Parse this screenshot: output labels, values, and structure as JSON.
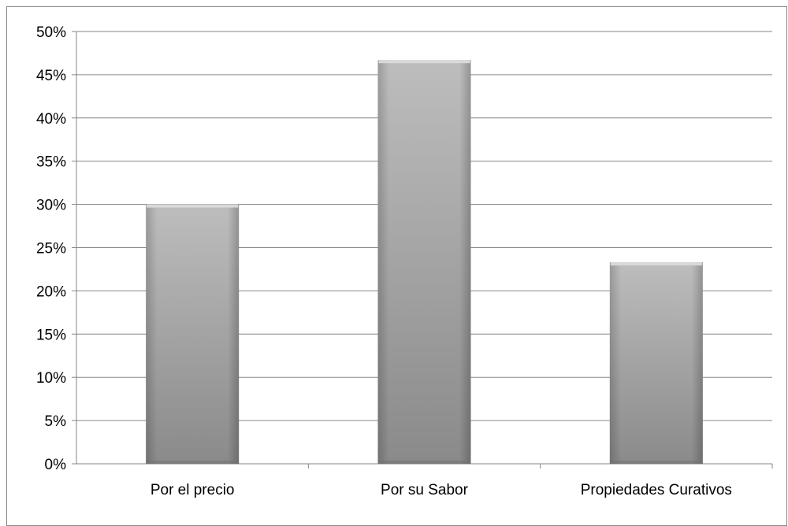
{
  "chart_data": {
    "type": "bar",
    "categories": [
      "Por el precio",
      "Por su Sabor",
      "Propiedades Curativos"
    ],
    "values": [
      30,
      46.7,
      23.3
    ],
    "value_unit": "%",
    "ylim": [
      0,
      50
    ],
    "yticks": [
      "0%",
      "5%",
      "10%",
      "15%",
      "20%",
      "25%",
      "30%",
      "35%",
      "40%",
      "45%",
      "50%"
    ],
    "grid": true,
    "legend": "none",
    "bar_color": "#a6a6a6",
    "title": "",
    "xlabel": "",
    "ylabel": ""
  }
}
